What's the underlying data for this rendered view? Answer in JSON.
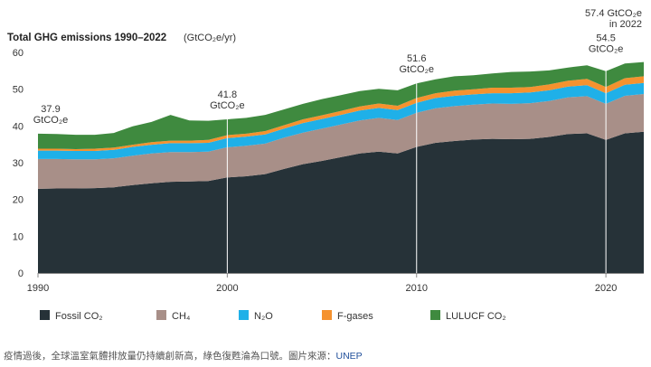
{
  "chart_data": {
    "type": "area",
    "stacked": true,
    "title": "Total GHG emissions 1990–2022",
    "title_unit": "(GtCO₂e/yr)",
    "x": [
      1990,
      1991,
      1992,
      1993,
      1994,
      1995,
      1996,
      1997,
      1998,
      1999,
      2000,
      2001,
      2002,
      2003,
      2004,
      2005,
      2006,
      2007,
      2008,
      2009,
      2010,
      2011,
      2012,
      2013,
      2014,
      2015,
      2016,
      2017,
      2018,
      2019,
      2020,
      2021,
      2022
    ],
    "xticks": [
      1990,
      2000,
      2010,
      2020
    ],
    "xtick_labels": [
      "1990",
      "2000",
      "2010",
      "2020"
    ],
    "ylim": [
      0,
      60
    ],
    "yticks": [
      0,
      10,
      20,
      30,
      40,
      50,
      60
    ],
    "ytick_labels": [
      "0",
      "10",
      "20",
      "30",
      "40",
      "50",
      "60"
    ],
    "grid": false,
    "legend_position": "bottom",
    "series": [
      {
        "name": "Fossil CO₂",
        "color": "#263238",
        "values": [
          22.9,
          23.0,
          23.0,
          23.1,
          23.3,
          23.9,
          24.4,
          24.8,
          24.9,
          25.0,
          26.0,
          26.3,
          26.9,
          28.3,
          29.6,
          30.5,
          31.5,
          32.5,
          33.0,
          32.5,
          34.3,
          35.4,
          35.9,
          36.3,
          36.5,
          36.4,
          36.5,
          37.0,
          37.8,
          38.0,
          36.2,
          38.0,
          38.4
        ]
      },
      {
        "name": "CH₄",
        "color": "#a88f88",
        "values": [
          8.1,
          8.0,
          7.9,
          7.8,
          7.9,
          8.0,
          8.1,
          8.1,
          8.0,
          8.0,
          8.2,
          8.3,
          8.3,
          8.5,
          8.6,
          8.8,
          8.9,
          9.0,
          9.2,
          9.1,
          9.3,
          9.4,
          9.5,
          9.5,
          9.6,
          9.6,
          9.7,
          9.8,
          10.0,
          10.1,
          9.8,
          10.2,
          10.3
        ]
      },
      {
        "name": "N₂O",
        "color": "#1fb0e8",
        "values": [
          2.3,
          2.3,
          2.3,
          2.3,
          2.3,
          2.4,
          2.4,
          2.4,
          2.4,
          2.4,
          2.5,
          2.5,
          2.5,
          2.5,
          2.6,
          2.6,
          2.6,
          2.7,
          2.7,
          2.7,
          2.7,
          2.8,
          2.8,
          2.8,
          2.8,
          2.9,
          2.9,
          2.9,
          2.9,
          3.0,
          2.9,
          3.0,
          3.0
        ]
      },
      {
        "name": "F-gases",
        "color": "#f5922f",
        "values": [
          0.5,
          0.5,
          0.5,
          0.6,
          0.6,
          0.6,
          0.7,
          0.7,
          0.7,
          0.8,
          0.8,
          0.8,
          0.9,
          0.9,
          1.0,
          1.0,
          1.1,
          1.1,
          1.2,
          1.2,
          1.3,
          1.3,
          1.4,
          1.4,
          1.5,
          1.5,
          1.5,
          1.6,
          1.6,
          1.7,
          1.7,
          1.8,
          1.8
        ]
      },
      {
        "name": "LULUCF CO₂",
        "color": "#3f8a3f",
        "values": [
          4.1,
          4.0,
          3.9,
          3.8,
          4.0,
          5.0,
          5.5,
          7.0,
          5.5,
          5.2,
          4.3,
          4.3,
          4.4,
          4.3,
          4.2,
          4.4,
          4.3,
          4.2,
          4.0,
          4.2,
          4.0,
          3.8,
          3.9,
          3.8,
          3.9,
          4.3,
          4.2,
          3.8,
          3.6,
          3.7,
          4.3,
          4.0,
          3.9
        ]
      }
    ],
    "annotations": [
      {
        "year": 1990,
        "lines": [
          "37.9",
          "GtCO₂e"
        ],
        "line": false
      },
      {
        "year": 2000,
        "lines": [
          "41.8",
          "GtCO₂e"
        ],
        "line": true
      },
      {
        "year": 2010,
        "lines": [
          "51.6",
          "GtCO₂e"
        ],
        "line": true
      },
      {
        "year": 2020,
        "lines": [
          "54.5",
          "GtCO₂e"
        ],
        "line": true
      },
      {
        "year": 2022,
        "lines": [
          "57.4 GtCO₂e",
          "in 2022"
        ],
        "line": false
      }
    ]
  },
  "caption": {
    "text": "疫情過後，全球溫室氣體排放量仍持續創新高，綠色復甦淪為口號。圖片來源：",
    "source": "UNEP"
  }
}
